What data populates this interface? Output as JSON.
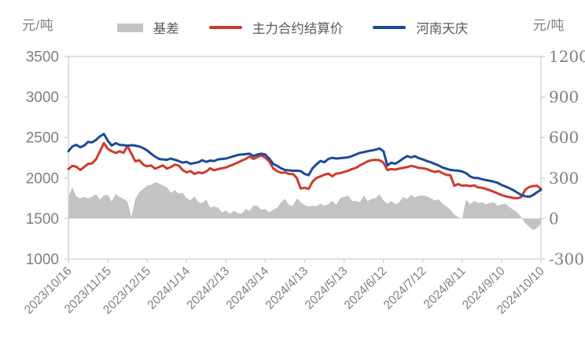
{
  "units": {
    "left": "元/吨",
    "right": "元/吨"
  },
  "legend": [
    {
      "label": "基差",
      "swatch": "area-swatch"
    },
    {
      "label": "主力合约结算价",
      "swatch": "line-swatch"
    },
    {
      "label": "河南天庆",
      "swatch": "line-swatch"
    }
  ],
  "colors": {
    "basis_area": "#c3c3c3",
    "futures_line": "#d03a2b",
    "spot_line": "#1b4a9a",
    "axis_line": "#cfcfcf",
    "tick_text": "#7f7f7f",
    "legend_text": "#595959",
    "background": "#ffffff"
  },
  "chart_data": {
    "type": "combo",
    "title": "",
    "x_total_days": 360,
    "x_step_days": 3,
    "x_tick_days": [
      0,
      30,
      60,
      90,
      120,
      150,
      180,
      210,
      240,
      270,
      300,
      330,
      360
    ],
    "x_tick_labels": [
      "2023/10/16",
      "2023/11/15",
      "2023/12/15",
      "2024/1/14",
      "2024/2/13",
      "2024/3/14",
      "2024/4/13",
      "2024/5/13",
      "2024/6/12",
      "2024/7/12",
      "2024/8/11",
      "2024/9/10",
      "2024/10/10"
    ],
    "left_axis": {
      "label": "元/吨",
      "min": 1000,
      "max": 3500,
      "ticks": [
        3500,
        3000,
        2500,
        2000,
        1500,
        1000
      ]
    },
    "right_axis": {
      "label": "元/吨",
      "min": -300,
      "max": 1200,
      "ticks": [
        1200,
        900,
        600,
        300,
        0,
        -300
      ]
    },
    "grid": false,
    "legend_position": "top",
    "series": [
      {
        "name": "基差",
        "type": "area",
        "axis": "right",
        "color": "#c3c3c3",
        "values": [
          162,
          230,
          162,
          150,
          160,
          150,
          160,
          180,
          140,
          170,
          175,
          127,
          180,
          160,
          145,
          127,
          10,
          144,
          195,
          220,
          245,
          250,
          270,
          260,
          245,
          230,
          190,
          210,
          185,
          190,
          150,
          135,
          165,
          120,
          115,
          140,
          80,
          90,
          80,
          45,
          60,
          35,
          55,
          40,
          35,
          70,
          55,
          95,
          95,
          65,
          70,
          45,
          65,
          80,
          120,
          145,
          100,
          95,
          150,
          120,
          100,
          90,
          95,
          90,
          110,
          95,
          105,
          130,
          100,
          150,
          160,
          170,
          130,
          130,
          120,
          170,
          130,
          145,
          150,
          180,
          135,
          110,
          130,
          105,
          120,
          160,
          145,
          175,
          155,
          170,
          170,
          165,
          150,
          135,
          140,
          110,
          90,
          65,
          30,
          10,
          0,
          140,
          105,
          130,
          115,
          120,
          105,
          115,
          120,
          95,
          105,
          110,
          85,
          65,
          45,
          10,
          -35,
          -60,
          -85,
          -70,
          -40
        ]
      },
      {
        "name": "主力合约结算价",
        "type": "line",
        "axis": "left",
        "color": "#d03a2b",
        "values": [
          2110,
          2150,
          2140,
          2100,
          2135,
          2175,
          2180,
          2230,
          2330,
          2430,
          2360,
          2330,
          2310,
          2330,
          2310,
          2395,
          2300,
          2205,
          2220,
          2165,
          2145,
          2155,
          2115,
          2135,
          2155,
          2115,
          2135,
          2165,
          2155,
          2100,
          2070,
          2085,
          2050,
          2070,
          2060,
          2080,
          2120,
          2095,
          2110,
          2120,
          2130,
          2150,
          2170,
          2190,
          2215,
          2235,
          2265,
          2235,
          2260,
          2280,
          2250,
          2205,
          2120,
          2085,
          2065,
          2070,
          2050,
          2050,
          2000,
          1870,
          1880,
          1865,
          1955,
          2000,
          2020,
          2040,
          2055,
          2020,
          2055,
          2060,
          2075,
          2090,
          2110,
          2125,
          2155,
          2180,
          2205,
          2220,
          2225,
          2220,
          2190,
          2100,
          2110,
          2105,
          2115,
          2125,
          2135,
          2150,
          2140,
          2125,
          2120,
          2110,
          2090,
          2075,
          2085,
          2060,
          2040,
          2035,
          1905,
          1925,
          1905,
          1910,
          1900,
          1910,
          1885,
          1880,
          1865,
          1850,
          1830,
          1810,
          1790,
          1775,
          1765,
          1755,
          1750,
          1765,
          1855,
          1890,
          1900,
          1905,
          1865
        ]
      },
      {
        "name": "河南天庆",
        "type": "line",
        "axis": "left",
        "color": "#1b4a9a",
        "values": [
          2330,
          2390,
          2410,
          2380,
          2400,
          2445,
          2440,
          2470,
          2515,
          2545,
          2460,
          2400,
          2430,
          2410,
          2405,
          2400,
          2405,
          2400,
          2390,
          2370,
          2340,
          2300,
          2265,
          2235,
          2230,
          2225,
          2240,
          2225,
          2210,
          2190,
          2200,
          2175,
          2185,
          2195,
          2220,
          2200,
          2215,
          2210,
          2230,
          2235,
          2240,
          2255,
          2270,
          2285,
          2290,
          2295,
          2300,
          2270,
          2290,
          2300,
          2290,
          2240,
          2175,
          2150,
          2120,
          2100,
          2095,
          2090,
          2090,
          2085,
          2050,
          2035,
          2120,
          2170,
          2210,
          2195,
          2235,
          2250,
          2240,
          2245,
          2250,
          2255,
          2270,
          2290,
          2310,
          2320,
          2330,
          2340,
          2350,
          2365,
          2330,
          2155,
          2190,
          2175,
          2205,
          2240,
          2270,
          2255,
          2270,
          2245,
          2230,
          2210,
          2195,
          2175,
          2155,
          2130,
          2115,
          2100,
          2095,
          2090,
          2080,
          2060,
          2020,
          2000,
          2000,
          1985,
          1975,
          1965,
          1955,
          1940,
          1915,
          1895,
          1875,
          1850,
          1820,
          1790,
          1775,
          1768,
          1790,
          1825,
          1855
        ]
      }
    ]
  }
}
